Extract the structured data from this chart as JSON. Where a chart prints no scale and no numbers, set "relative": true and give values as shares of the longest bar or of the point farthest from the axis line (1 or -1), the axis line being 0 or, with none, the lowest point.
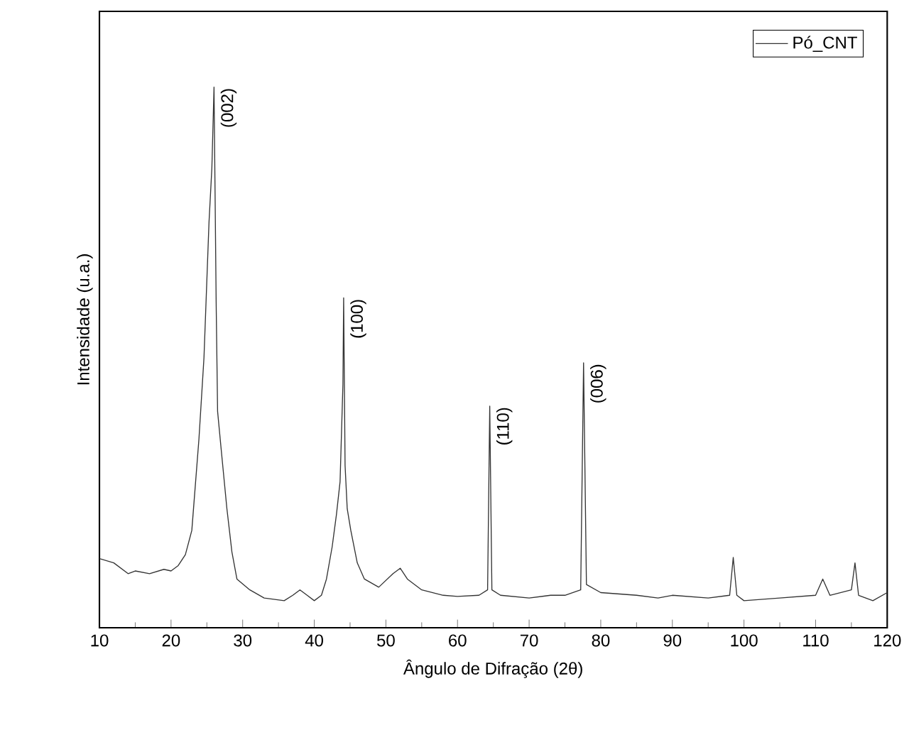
{
  "chart_data": {
    "type": "line",
    "relative": true,
    "xlabel": "Ângulo de Difração (2θ)",
    "ylabel": "Intensidade (u.a.)",
    "xlim": [
      10,
      120
    ],
    "xticks": [
      10,
      20,
      30,
      40,
      50,
      60,
      70,
      80,
      90,
      100,
      110,
      120
    ],
    "tick_labels": "x",
    "legend": "top right",
    "marker": "none",
    "line_style": "solid",
    "series": [
      {
        "name": "Pó_CNT",
        "color": "#333333",
        "x": [
          10,
          12,
          14,
          15,
          17,
          19,
          20,
          21,
          22,
          22.9,
          23.9,
          24.6,
          25.3,
          25.7,
          26.0,
          26.3,
          26.5,
          27.0,
          27.8,
          28.5,
          29.2,
          31,
          33,
          35.8,
          37,
          38,
          39,
          40,
          41,
          41.7,
          42.5,
          43.1,
          43.6,
          44.0,
          44.1,
          44.3,
          44.6,
          45.1,
          46,
          47,
          49,
          51,
          52,
          53,
          55,
          58,
          60,
          63,
          64.2,
          64.5,
          64.8,
          66,
          70,
          73,
          75,
          77.2,
          77.6,
          78,
          80,
          85,
          88,
          90,
          95,
          98,
          98.5,
          99,
          100,
          105,
          110,
          111,
          112,
          115,
          115.5,
          116,
          118,
          120
        ],
        "values": [
          0.128,
          0.12,
          0.1,
          0.105,
          0.1,
          0.108,
          0.105,
          0.115,
          0.135,
          0.18,
          0.35,
          0.5,
          0.75,
          0.85,
          1.0,
          0.6,
          0.4,
          0.33,
          0.22,
          0.14,
          0.09,
          0.07,
          0.055,
          0.05,
          0.06,
          0.07,
          0.06,
          0.05,
          0.06,
          0.09,
          0.15,
          0.21,
          0.27,
          0.45,
          0.61,
          0.3,
          0.22,
          0.18,
          0.12,
          0.09,
          0.075,
          0.1,
          0.11,
          0.09,
          0.07,
          0.06,
          0.058,
          0.06,
          0.07,
          0.41,
          0.07,
          0.06,
          0.055,
          0.06,
          0.06,
          0.07,
          0.49,
          0.08,
          0.065,
          0.06,
          0.055,
          0.06,
          0.055,
          0.06,
          0.13,
          0.06,
          0.05,
          0.055,
          0.06,
          0.09,
          0.06,
          0.07,
          0.12,
          0.06,
          0.05,
          0.065
        ]
      }
    ],
    "annotations": [
      {
        "text": "(002)",
        "x": 26.0,
        "y": 1.0
      },
      {
        "text": "(100)",
        "x": 44.1,
        "y": 0.61
      },
      {
        "text": "(110)",
        "x": 64.5,
        "y": 0.41
      },
      {
        "text": "(006)",
        "x": 77.6,
        "y": 0.49
      }
    ]
  }
}
